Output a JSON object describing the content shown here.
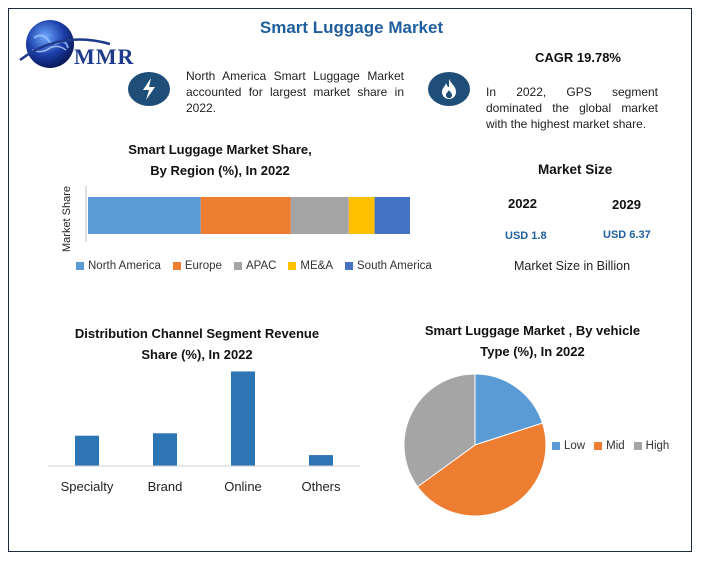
{
  "title": "Smart Luggage Market",
  "logo": {
    "text": "MMR"
  },
  "info_left": {
    "icon": "lightning-icon",
    "text": "North America Smart Luggage Market accounted for largest market share in 2022."
  },
  "info_right": {
    "icon": "flame-icon",
    "cagr": "CAGR 19.78%",
    "text": "In 2022, GPS segment dominated the global market with the highest market share."
  },
  "market_size": {
    "title": "Market Size",
    "year_a": "2022",
    "value_a": "USD 1.8",
    "year_b": "2029",
    "value_b": "USD 6.37",
    "unit_label": "Market Size in Billion"
  },
  "colors": {
    "title": "#1f5f9e",
    "icon_bg": "#1f4e79"
  },
  "chart_data": [
    {
      "type": "bar",
      "orientation": "horizontal-stacked",
      "title": "Smart Luggage Market Share, By Region (%), In 2022",
      "title_line1": "Smart Luggage Market Share,",
      "title_line2": "By Region (%), In 2022",
      "ylabel": "Market Share",
      "legend_position": "bottom",
      "series": [
        {
          "name": "North America",
          "value": 35,
          "color": "#5b9bd5"
        },
        {
          "name": "Europe",
          "value": 28,
          "color": "#ed7d31"
        },
        {
          "name": "APAC",
          "value": 18,
          "color": "#a5a5a5"
        },
        {
          "name": "ME&A",
          "value": 8,
          "color": "#ffc000"
        },
        {
          "name": "South America",
          "value": 11,
          "color": "#4472c4"
        }
      ]
    },
    {
      "type": "bar",
      "title": "Distribution Channel Segment Revenue Share (%), In 2022",
      "title_line1": "Distribution Channel Segment Revenue",
      "title_line2": "Share (%), In 2022",
      "categories": [
        "Specialty",
        "Brand",
        "Online",
        "Others"
      ],
      "values": [
        25,
        27,
        78,
        9
      ],
      "ylim": [
        0,
        80
      ],
      "color": "#2e75b6"
    },
    {
      "type": "pie",
      "title": "Smart Luggage Market , By vehicle Type (%), In 2022",
      "title_line1": "Smart Luggage Market , By vehicle",
      "title_line2": "Type (%), In 2022",
      "legend_position": "right",
      "slices": [
        {
          "name": "Low",
          "value": 20,
          "color": "#5b9bd5"
        },
        {
          "name": "Mid",
          "value": 45,
          "color": "#ed7d31"
        },
        {
          "name": "High",
          "value": 35,
          "color": "#a5a5a5"
        }
      ]
    }
  ]
}
